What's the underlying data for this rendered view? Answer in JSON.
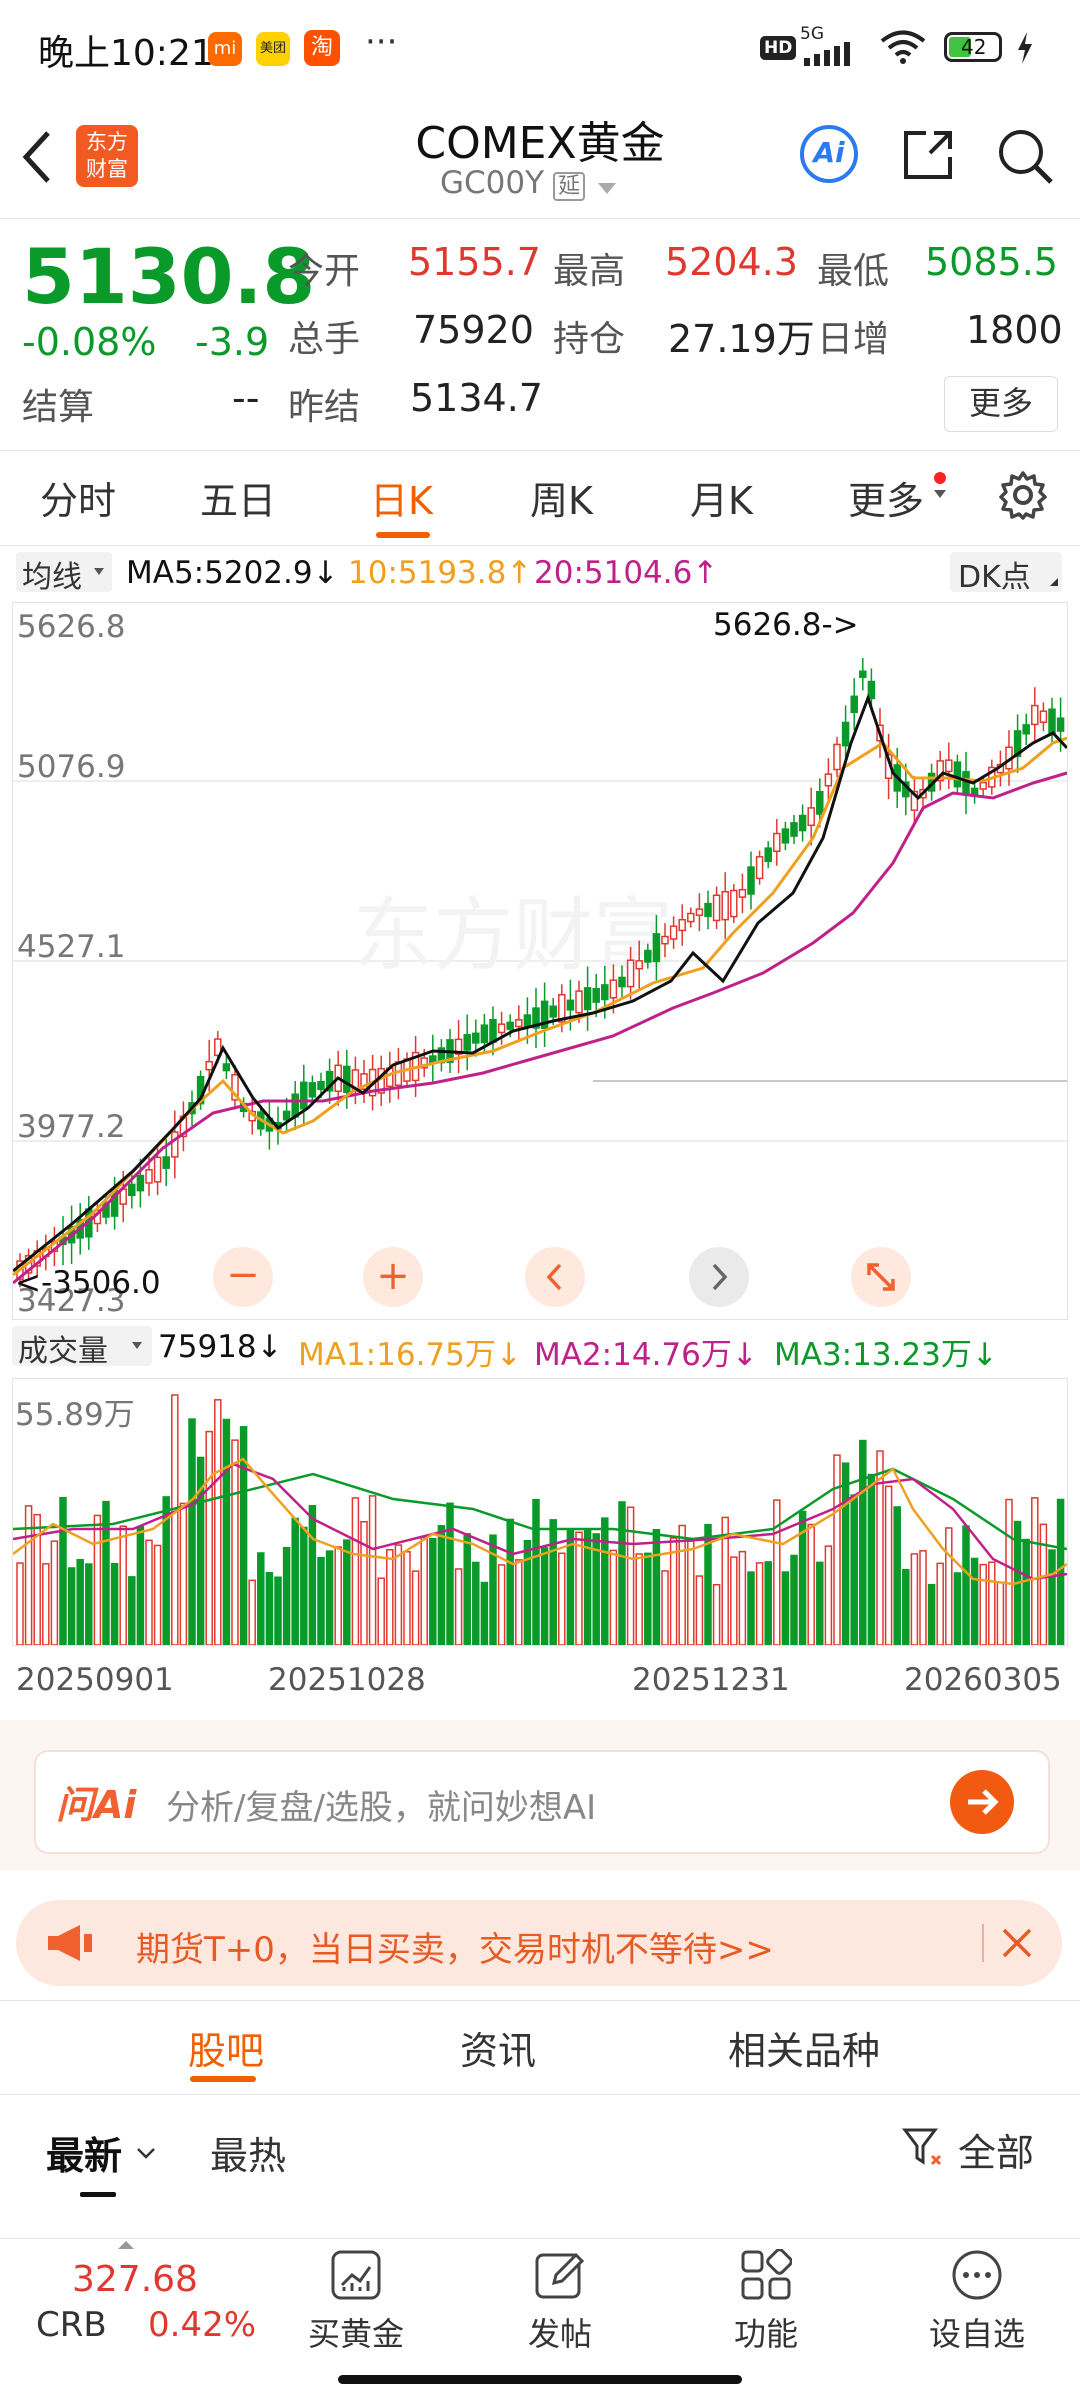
{
  "status_bar": {
    "time": "晚上10:21",
    "notif_app1": "mi",
    "notif_app2": "美团",
    "notif_app3": "淘",
    "more": "···",
    "hd": "HD",
    "signal": "5G",
    "battery": "42"
  },
  "header": {
    "logo_top": "东方",
    "logo_bottom": "财富",
    "title": "COMEX黄金",
    "code": "GC00Y",
    "delay_badge": "延",
    "ai_label": "Ai"
  },
  "quote": {
    "price": "5130.8",
    "change_pct": "-0.08%",
    "change": "-3.9",
    "open_label": "今开",
    "open": "5155.7",
    "high_label": "最高",
    "high": "5204.3",
    "low_label": "最低",
    "low": "5085.5",
    "volume_label": "总手",
    "volume": "75920",
    "oi_label": "持仓",
    "oi": "27.19万",
    "daily_add_label": "日增",
    "daily_add": "1800",
    "settle_label": "结算",
    "settle": "--",
    "prev_settle_label": "昨结",
    "prev_settle": "5134.7",
    "more_button": "更多"
  },
  "period_tabs": [
    "分时",
    "五日",
    "日K",
    "周K",
    "月K",
    "更多"
  ],
  "active_tab": "日K",
  "ma_bar": {
    "selector": "均线",
    "ma5": "MA5:5202.9↓",
    "ma10": "10:5193.8↑",
    "ma20": "20:5104.6↑",
    "dk": "DK点"
  },
  "price_chart": {
    "y_labels": [
      "5626.8",
      "5076.9",
      "4527.1",
      "3977.2",
      "3427.3"
    ],
    "high_marker": "5626.8->",
    "low_marker": "<-3506.0",
    "colors": {
      "up": "#e0382f",
      "down": "#0a9a2a",
      "ma5": "#111111",
      "ma10": "#f0a020",
      "ma20": "#c0208a"
    }
  },
  "volume_bar": {
    "selector": "成交量",
    "vol": "75918↓",
    "ma1": "MA1:16.75万↓",
    "ma2": "MA2:14.76万↓",
    "ma3": "MA3:13.23万↓",
    "y_max": "55.89万"
  },
  "dates": [
    "20250901",
    "20251028",
    "20251231",
    "20260305"
  ],
  "ai_search": {
    "brand": "问Ai",
    "placeholder": "分析/复盘/选股，就问妙想AI"
  },
  "banner": {
    "text": "期货T+0，当日买卖，交易时机不等待>>"
  },
  "content_tabs": [
    "股吧",
    "资讯",
    "相关品种"
  ],
  "feed_tabs": {
    "latest": "最新",
    "hot": "最热",
    "filter": "全部"
  },
  "bottom_bar": {
    "ticker_value": "327.68",
    "ticker_name": "CRB",
    "ticker_change": "0.42%",
    "buy_gold": "买黄金",
    "post": "发帖",
    "functions": "功能",
    "watchlist": "设自选"
  }
}
